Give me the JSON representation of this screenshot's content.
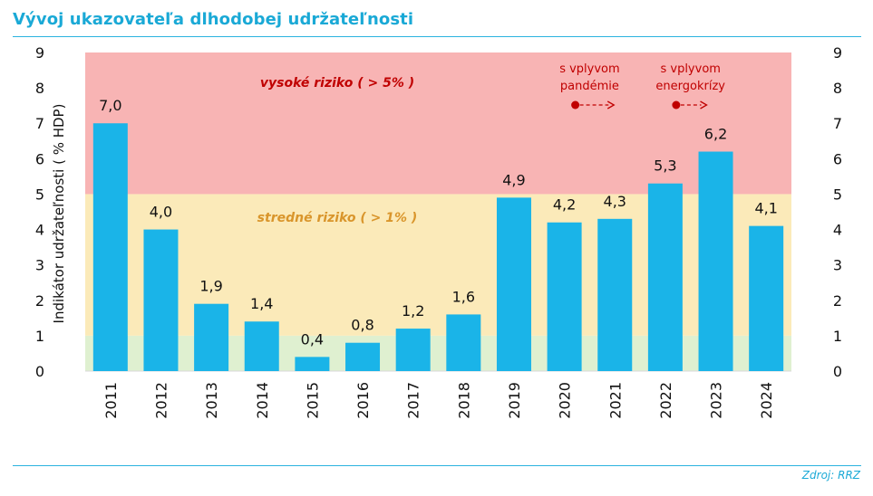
{
  "title": "Vývoj ukazovateľa dlhodobej udržateľnosti",
  "source": "Zdroj: RRZ",
  "chart_data": {
    "type": "bar",
    "categories": [
      "2011",
      "2012",
      "2013",
      "2014",
      "2015",
      "2016",
      "2017",
      "2018",
      "2019",
      "2020",
      "2021",
      "2022",
      "2023",
      "2024"
    ],
    "values": [
      7.0,
      4.0,
      1.9,
      1.4,
      0.4,
      0.8,
      1.2,
      1.6,
      4.9,
      4.2,
      4.3,
      5.3,
      6.2,
      4.1
    ],
    "value_labels": [
      "7,0",
      "4,0",
      "1,9",
      "1,4",
      "0,4",
      "0,8",
      "1,2",
      "1,6",
      "4,9",
      "4,2",
      "4,3",
      "5,3",
      "6,2",
      "4,1"
    ],
    "ylabel": "Indikátor udržateľnosti ( % HDP)",
    "ylim": [
      0,
      9
    ],
    "yticks": [
      0,
      1,
      2,
      3,
      4,
      5,
      6,
      7,
      8,
      9
    ],
    "bar_color": "#1ab4e8",
    "zones": [
      {
        "name": "low",
        "from": 0,
        "to": 1,
        "color": "#dff0d0",
        "label": ""
      },
      {
        "name": "medium",
        "from": 1,
        "to": 5,
        "color": "#fbeab9",
        "label": "stredné riziko ( > 1% )",
        "label_color": "#d9952b"
      },
      {
        "name": "high",
        "from": 5,
        "to": 9,
        "color": "#f8b4b4",
        "label": "vysoké riziko ( > 5% )",
        "label_color": "#c00000"
      }
    ],
    "annotations": [
      {
        "lines": [
          "s vplyvom",
          "pandémie"
        ],
        "from_category": "2020",
        "to_category": "2021",
        "color": "#c00000"
      },
      {
        "lines": [
          "s vplyvom",
          "energokrízy"
        ],
        "from_category": "2022",
        "to_category": "2023",
        "color": "#c00000"
      }
    ]
  }
}
